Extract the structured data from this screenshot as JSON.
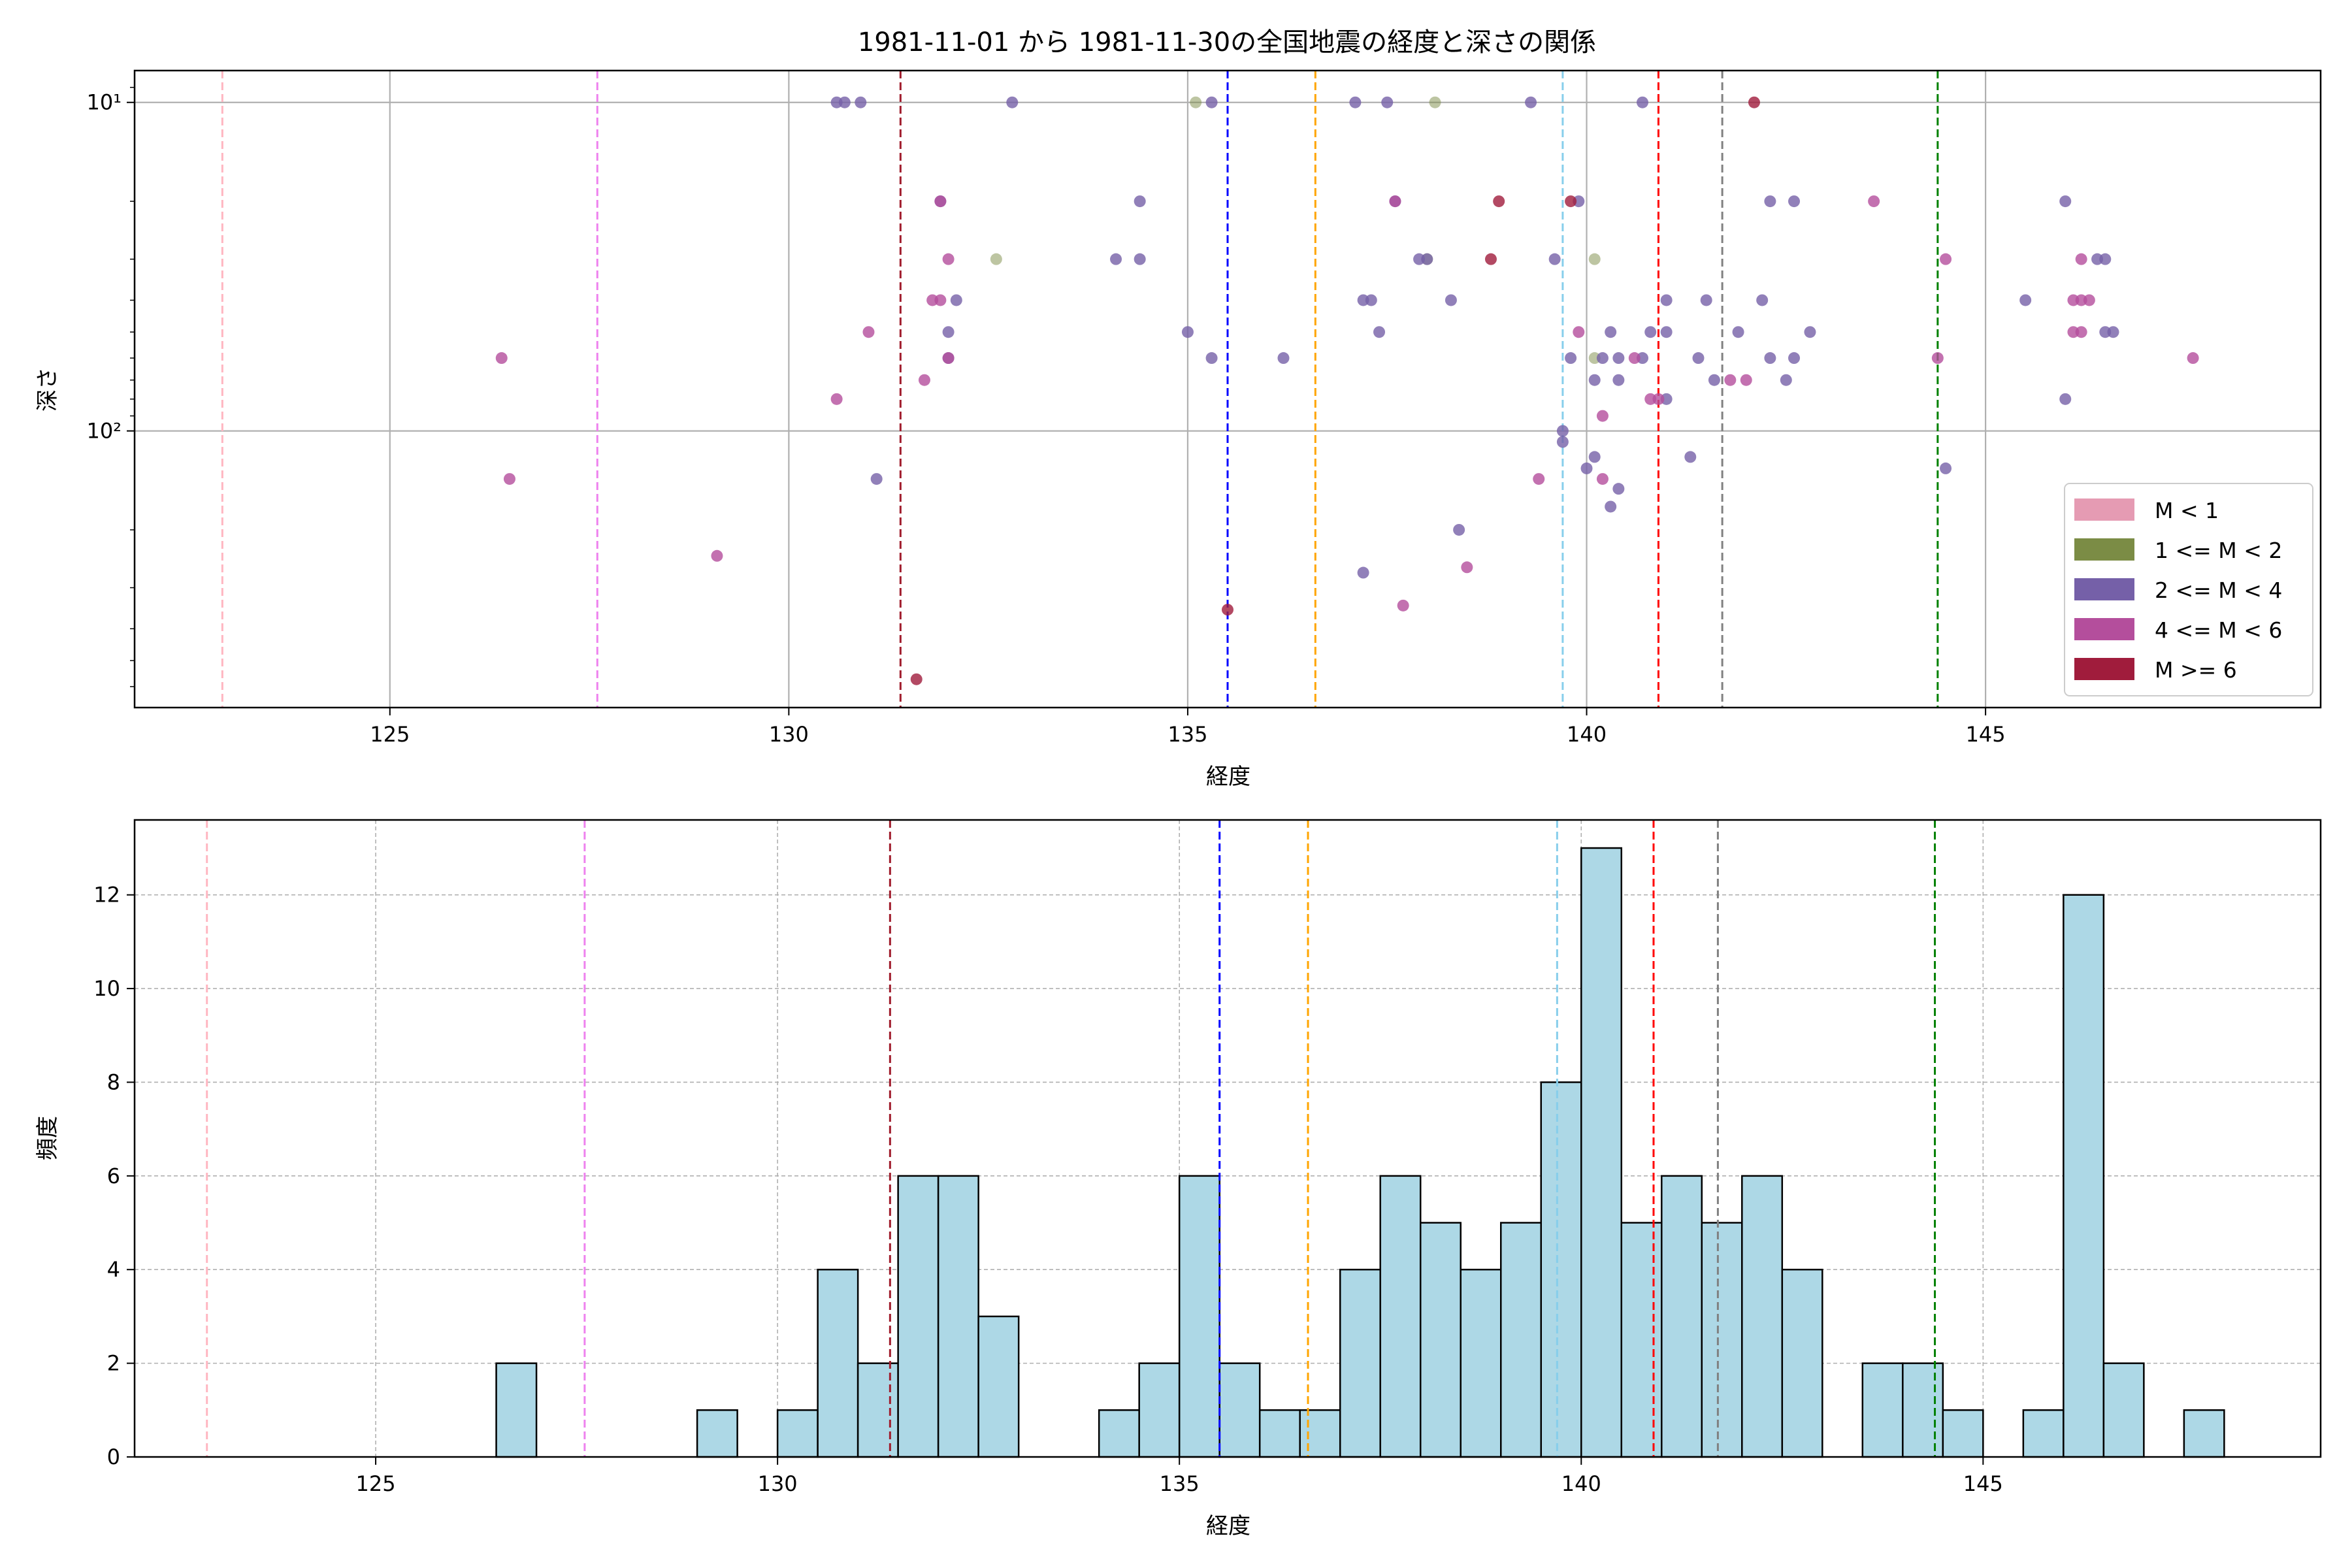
{
  "figure": {
    "title": "1981-11-01 から 1981-11-30の全国地震の経度と深さの関係"
  },
  "colors": {
    "ref_lines": [
      "#ffb6c1",
      "#ee82ee",
      "#a01c2c",
      "#0000ff",
      "#ffa500",
      "#87ceeb",
      "#ff0000",
      "#808080",
      "#008000"
    ],
    "legend": [
      "#e59bb3",
      "#7b8c45",
      "#7560a8",
      "#b44e9c",
      "#a01c3c"
    ],
    "hist_fill": "#add8e6"
  },
  "chart_data": [
    {
      "type": "scatter",
      "xlabel": "経度",
      "ylabel": "深さ",
      "xlim": [
        121.8,
        149.2
      ],
      "ylim": [
        695,
        8.0
      ],
      "yscale": "log",
      "y_inverted": true,
      "xticks": [
        125,
        130,
        135,
        140,
        145
      ],
      "xtick_labels": [
        "125",
        "130",
        "135",
        "140",
        "145"
      ],
      "yticks": [
        10,
        100
      ],
      "ytick_labels": [
        "10¹",
        "10²"
      ],
      "grid": true,
      "legend": {
        "placement": "bottom-right",
        "entries": [
          "M < 1",
          "1 <= M < 2",
          "2 <= M < 4",
          "4 <= M < 6",
          "M >= 6"
        ]
      },
      "ref_lines_x": [
        122.9,
        127.6,
        131.4,
        135.5,
        136.6,
        139.7,
        140.9,
        141.7,
        144.4
      ],
      "series": [
        {
          "x": [
            135.1,
            138.1,
            132.6,
            140.1,
            140.1,
            138.0
          ],
          "y": [
            10,
            10,
            30,
            30,
            60,
            30
          ]
        },
        {
          "x": [
            130.6,
            130.7,
            130.9,
            132.8,
            135.3,
            137.1,
            137.5,
            139.3,
            140.7,
            131.9,
            134.4,
            137.6,
            139.9,
            142.3,
            142.6,
            146.0,
            134.1,
            134.4,
            137.9,
            138.0,
            139.6,
            146.4,
            146.5,
            132.1,
            137.2,
            137.3,
            138.3,
            141.0,
            141.5,
            142.2,
            145.5,
            132.0,
            135.0,
            137.4,
            140.3,
            140.8,
            141.0,
            141.9,
            142.8,
            146.5,
            146.6,
            132.0,
            135.3,
            136.2,
            139.8,
            140.2,
            140.4,
            140.7,
            141.4,
            142.3,
            142.6,
            141.6,
            142.5,
            140.1,
            140.4,
            141.0,
            146.0,
            139.7,
            139.7,
            140.1,
            140.0,
            144.5,
            141.3,
            131.1,
            140.4,
            140.3,
            138.4,
            137.2
          ],
          "y": [
            10,
            10,
            10,
            10,
            10,
            10,
            10,
            10,
            10,
            20,
            20,
            20,
            20,
            20,
            20,
            20,
            30,
            30,
            30,
            30,
            30,
            30,
            30,
            40,
            40,
            40,
            40,
            40,
            40,
            40,
            40,
            50,
            50,
            50,
            50,
            50,
            50,
            50,
            50,
            50,
            50,
            60,
            60,
            60,
            60,
            60,
            60,
            60,
            60,
            60,
            60,
            70,
            70,
            70,
            70,
            80,
            80,
            100,
            108,
            120,
            130,
            130,
            120,
            140,
            150,
            170,
            200,
            270
          ]
        },
        {
          "x": [
            131.9,
            143.6,
            137.6,
            132.0,
            144.5,
            146.2,
            131.8,
            131.9,
            146.1,
            146.2,
            146.3,
            131.0,
            139.9,
            146.1,
            146.2,
            126.4,
            132.0,
            144.4,
            140.6,
            140.8,
            131.7,
            141.8,
            142.0,
            130.6,
            140.9,
            140.2,
            126.5,
            139.4,
            140.2,
            129.1,
            138.5,
            137.7,
            147.6
          ],
          "y": [
            20,
            20,
            20,
            30,
            30,
            30,
            40,
            40,
            40,
            40,
            40,
            50,
            50,
            50,
            50,
            60,
            60,
            60,
            60,
            80,
            70,
            70,
            70,
            80,
            80,
            90,
            140,
            140,
            140,
            240,
            260,
            340,
            60
          ]
        },
        {
          "x": [
            142.1,
            138.9,
            139.8,
            138.8,
            135.5,
            131.6
          ],
          "y": [
            10,
            20,
            20,
            30,
            350,
            570
          ]
        }
      ]
    },
    {
      "type": "bar",
      "xlabel": "経度",
      "ylabel": "頻度",
      "xlim": [
        122.0,
        149.2
      ],
      "ylim": [
        0,
        13.6
      ],
      "xticks": [
        125,
        130,
        135,
        140,
        145
      ],
      "xtick_labels": [
        "125",
        "130",
        "135",
        "140",
        "145"
      ],
      "yticks": [
        0,
        2,
        4,
        6,
        8,
        10,
        12
      ],
      "ytick_labels": [
        "0",
        "2",
        "4",
        "6",
        "8",
        "10",
        "12"
      ],
      "grid": true,
      "ref_lines_x": [
        122.9,
        127.6,
        131.4,
        135.5,
        136.6,
        139.7,
        140.9,
        141.7,
        144.4
      ],
      "bin_width": 0.5,
      "bins": [
        [
          126.5,
          2
        ],
        [
          129.0,
          1
        ],
        [
          130.0,
          1
        ],
        [
          130.5,
          4
        ],
        [
          131.0,
          2
        ],
        [
          131.5,
          6
        ],
        [
          132.0,
          6
        ],
        [
          132.5,
          3
        ],
        [
          134.0,
          1
        ],
        [
          134.5,
          2
        ],
        [
          135.0,
          6
        ],
        [
          135.5,
          2
        ],
        [
          136.0,
          1
        ],
        [
          136.5,
          1
        ],
        [
          137.0,
          4
        ],
        [
          137.5,
          6
        ],
        [
          138.0,
          5
        ],
        [
          138.5,
          4
        ],
        [
          139.0,
          5
        ],
        [
          139.5,
          8
        ],
        [
          140.0,
          13
        ],
        [
          140.5,
          5
        ],
        [
          141.0,
          6
        ],
        [
          141.5,
          5
        ],
        [
          142.0,
          6
        ],
        [
          142.5,
          4
        ],
        [
          143.5,
          2
        ],
        [
          144.0,
          2
        ],
        [
          144.5,
          1
        ],
        [
          145.5,
          1
        ],
        [
          146.0,
          12
        ],
        [
          146.5,
          2
        ],
        [
          147.5,
          1
        ]
      ]
    }
  ]
}
